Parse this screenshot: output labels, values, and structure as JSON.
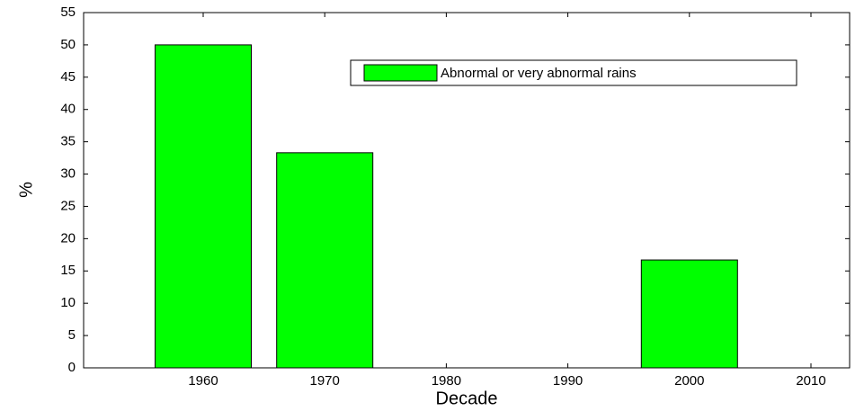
{
  "chart_data": {
    "type": "bar",
    "categories": [
      "1960",
      "1970",
      "1980",
      "1990",
      "2000",
      "2010"
    ],
    "series": [
      {
        "name": "Abnormal or very abnormal rains",
        "color": "#00ff00",
        "values": [
          50,
          33.3,
          0,
          0,
          16.7,
          0
        ]
      }
    ],
    "x_label": "Decade",
    "y_label": "%",
    "ylim": [
      0,
      55
    ],
    "yticks": [
      0,
      5,
      10,
      15,
      20,
      25,
      30,
      35,
      40,
      45,
      50,
      55
    ],
    "grid": false,
    "legend": "upper right"
  }
}
